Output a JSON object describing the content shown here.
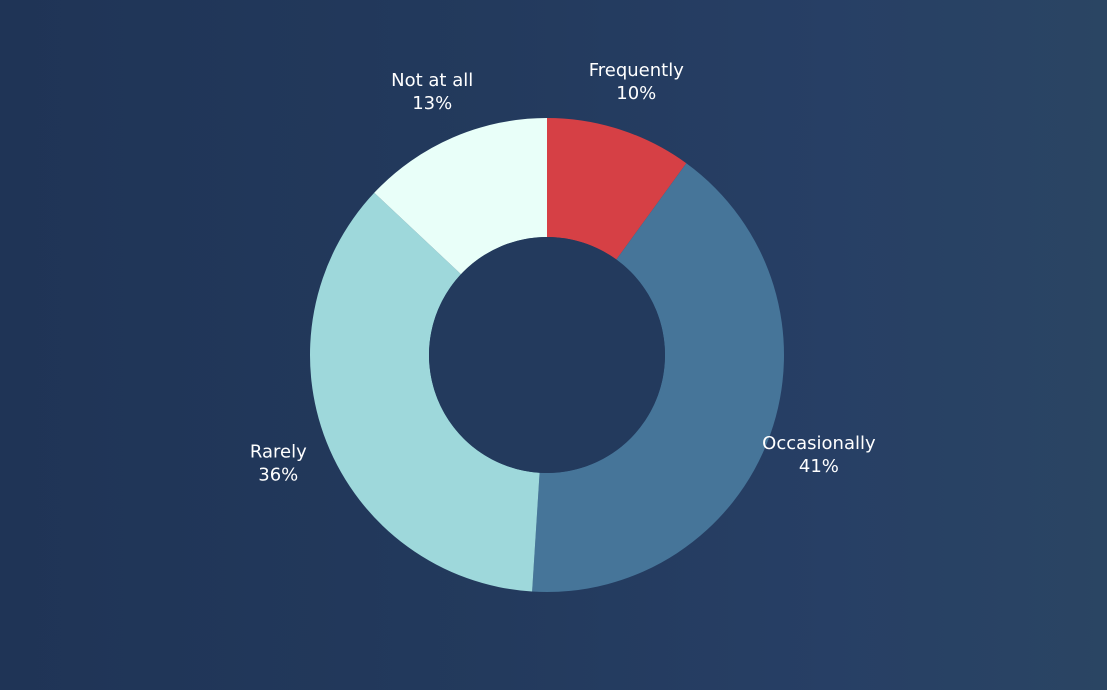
{
  "chart_data": {
    "type": "pie",
    "variant": "donut",
    "categories": [
      "Frequently",
      "Occasionally",
      "Rarely",
      "Not at all"
    ],
    "values": [
      10,
      41,
      36,
      13
    ],
    "labels": [
      "10%",
      "41%",
      "36%",
      "13%"
    ],
    "colors": [
      "#d64045",
      "#467599",
      "#9ed8db",
      "#e9fff9"
    ],
    "background_color": "#233a5d",
    "legend": "none"
  }
}
